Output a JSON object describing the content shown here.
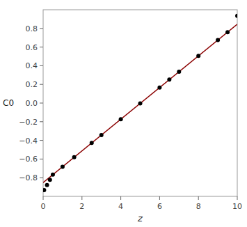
{
  "chart_data": {
    "type": "line",
    "title": "",
    "xlabel": "z",
    "ylabel": "C0",
    "xlim": [
      0,
      10
    ],
    "ylim": [
      -1.0,
      1.0
    ],
    "xticks": [
      0,
      2,
      4,
      6,
      8,
      10
    ],
    "yticks": [
      {
        "value": -0.8,
        "label": "−0.8"
      },
      {
        "value": -0.6,
        "label": "−0.6"
      },
      {
        "value": -0.4,
        "label": "−0.4"
      },
      {
        "value": -0.2,
        "label": "−0.2"
      },
      {
        "value": 0.0,
        "label": "0.0"
      },
      0.2,
      0.4,
      0.6,
      0.8
    ],
    "grid": false,
    "series": [
      {
        "type": "line",
        "color": "#8B0000",
        "x": [
          0,
          10
        ],
        "values": [
          -0.852,
          0.845
        ]
      },
      {
        "type": "scatter",
        "color": "#000000",
        "marker": "circle",
        "x": [
          0.05,
          0.2,
          0.35,
          0.5,
          1.0,
          1.6,
          2.5,
          3.0,
          4.0,
          5.0,
          6.0,
          6.5,
          7.0,
          8.0,
          9.0,
          9.5,
          10.0
        ],
        "values": [
          -0.933515,
          -0.87806,
          -0.822605,
          -0.76715,
          -0.6823,
          -0.58048,
          -0.42775,
          -0.3429,
          -0.1732,
          -0.0035,
          0.1662,
          0.25105,
          0.3359,
          0.5056,
          0.6753,
          0.76015,
          0.935
        ]
      }
    ]
  }
}
